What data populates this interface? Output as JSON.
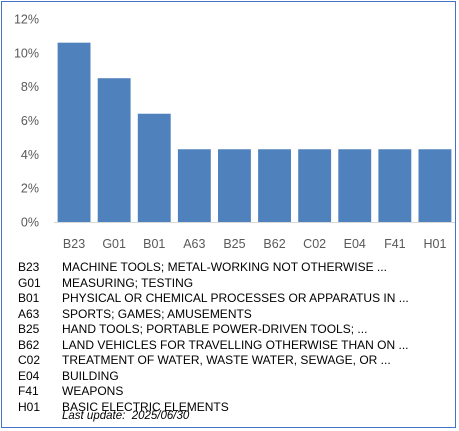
{
  "chart_data": {
    "type": "bar",
    "categories": [
      "B23",
      "G01",
      "B01",
      "A63",
      "B25",
      "B62",
      "C02",
      "E04",
      "F41",
      "H01"
    ],
    "values": [
      10.6,
      8.5,
      6.4,
      4.3,
      4.3,
      4.3,
      4.3,
      4.3,
      4.3,
      4.3
    ],
    "y_ticks": [
      "0%",
      "2%",
      "4%",
      "6%",
      "8%",
      "10%",
      "12%"
    ],
    "ylim": [
      0,
      12
    ],
    "y_unit": "%",
    "grid": false,
    "bar_color": "#4f81bd"
  },
  "legend": [
    {
      "code": "B23",
      "desc": "MACHINE TOOLS; METAL-WORKING NOT OTHERWISE ..."
    },
    {
      "code": "G01",
      "desc": "MEASURING; TESTING"
    },
    {
      "code": "B01",
      "desc": "PHYSICAL OR CHEMICAL PROCESSES OR APPARATUS IN ..."
    },
    {
      "code": "A63",
      "desc": "SPORTS; GAMES; AMUSEMENTS"
    },
    {
      "code": "B25",
      "desc": "HAND TOOLS; PORTABLE POWER-DRIVEN TOOLS; ..."
    },
    {
      "code": "B62",
      "desc": "LAND VEHICLES FOR TRAVELLING OTHERWISE THAN ON ..."
    },
    {
      "code": "C02",
      "desc": "TREATMENT OF WATER, WASTE WATER, SEWAGE, OR ..."
    },
    {
      "code": "E04",
      "desc": "BUILDING"
    },
    {
      "code": "F41",
      "desc": "WEAPONS"
    },
    {
      "code": "H01",
      "desc": "BASIC ELECTRIC ELEMENTS"
    }
  ],
  "last_update": "Last update:  2025/06/30",
  "frame_color": "#4472c4"
}
